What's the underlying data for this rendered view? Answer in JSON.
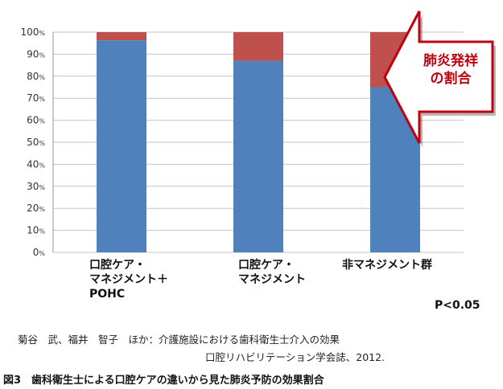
{
  "chart_data": {
    "type": "bar",
    "stacked": true,
    "categories": [
      [
        "口腔ケア・",
        "マネジメント＋",
        "POHC"
      ],
      [
        "口腔ケア・",
        "マネジメント"
      ],
      [
        "非マネジメント群"
      ]
    ],
    "series": [
      {
        "color": "#4f81bd",
        "values": [
          96.3,
          87.0,
          75.0
        ]
      },
      {
        "color": "#c0504d",
        "values": [
          3.7,
          13.0,
          25.0
        ]
      }
    ],
    "ylim": [
      0,
      100
    ],
    "yticks": [
      {
        "value": 0,
        "num": "0",
        "unit": "%"
      },
      {
        "value": 10,
        "num": "10",
        "unit": "%"
      },
      {
        "value": 20,
        "num": "20",
        "unit": "%"
      },
      {
        "value": 30,
        "num": "30",
        "unit": "%"
      },
      {
        "value": 40,
        "num": "40",
        "unit": "%"
      },
      {
        "value": 50,
        "num": "50",
        "unit": "%"
      },
      {
        "value": 60,
        "num": "60",
        "unit": "%"
      },
      {
        "value": 70,
        "num": "70",
        "unit": "%"
      },
      {
        "value": 80,
        "num": "80",
        "unit": "%"
      },
      {
        "value": 90,
        "num": "90",
        "unit": "%"
      },
      {
        "value": 100,
        "num": "100",
        "unit": "%"
      }
    ],
    "grid": true,
    "annotation": {
      "lines": [
        "肺炎発祥",
        "の割合"
      ],
      "color": "#c0000f",
      "points_to": "非マネジメント群"
    }
  },
  "p_value": "P<0.05",
  "citation": {
    "line1": "菊谷　武、福井　智子　ほか：介護施設における歯科衛生士介入の効果",
    "line2": "口腔リハビリテーション学会誌、2012."
  },
  "caption": "図3　歯科衛生士による口腔ケアの違いから見た肺炎予防の効果割合"
}
